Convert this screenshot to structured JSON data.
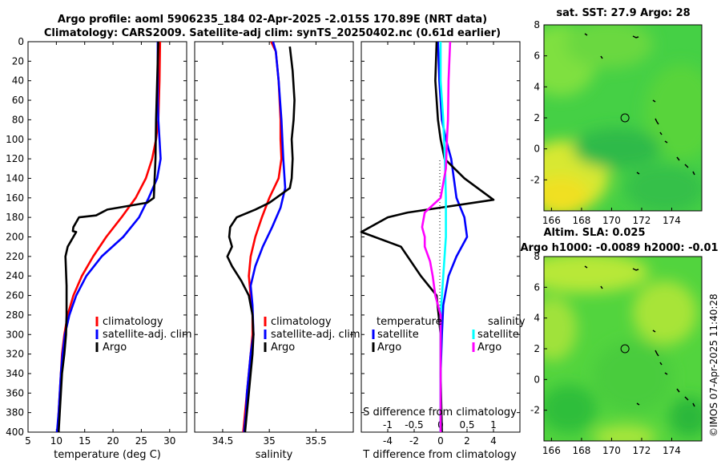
{
  "title": {
    "line1": "Argo profile: aoml 5906235_184 02-Apr-2025 -2.015S 170.89E (NRT data)",
    "line2": "Climatology: CARS2009. Satellite-adj clim: synTS_20250402.nc (0.61d earlier)"
  },
  "depth_ticks": [
    0,
    20,
    40,
    60,
    80,
    100,
    120,
    140,
    160,
    180,
    200,
    220,
    240,
    260,
    280,
    300,
    320,
    340,
    360,
    380,
    400
  ],
  "colors": {
    "climatology": "#ff0000",
    "satellite": "#0000ff",
    "argo": "#000000",
    "sat_salinity": "#00ffff",
    "argo_salinity": "#ff00ff"
  },
  "stamp": "©IMOS 07-Apr-2025 11:40:28",
  "chart_data": [
    {
      "type": "line",
      "name": "temperature",
      "xlabel": "temperature (deg C)",
      "ylabel": "depth",
      "xlim": [
        5,
        33
      ],
      "ylim": [
        0,
        400
      ],
      "xticks": [
        5,
        10,
        15,
        20,
        25,
        30
      ],
      "legend": [
        "climatology",
        "satellite-adj. clim",
        "Argo"
      ],
      "series": [
        {
          "name": "climatology",
          "color": "#ff0000",
          "points": [
            [
              28.3,
              0
            ],
            [
              28.2,
              40
            ],
            [
              28.0,
              80
            ],
            [
              27.6,
              100
            ],
            [
              26.9,
              120
            ],
            [
              25.8,
              140
            ],
            [
              24.0,
              160
            ],
            [
              21.5,
              180
            ],
            [
              18.8,
              200
            ],
            [
              16.5,
              220
            ],
            [
              14.5,
              240
            ],
            [
              13.0,
              260
            ],
            [
              12.0,
              280
            ],
            [
              11.4,
              300
            ],
            [
              11.0,
              320
            ],
            [
              10.8,
              340
            ],
            [
              10.6,
              360
            ],
            [
              10.4,
              380
            ],
            [
              10.2,
              400
            ]
          ]
        },
        {
          "name": "satellite-adj. clim",
          "color": "#0000ff",
          "points": [
            [
              27.9,
              0
            ],
            [
              27.9,
              60
            ],
            [
              28.0,
              80
            ],
            [
              28.2,
              100
            ],
            [
              28.4,
              120
            ],
            [
              27.8,
              140
            ],
            [
              26.3,
              160
            ],
            [
              24.6,
              180
            ],
            [
              21.8,
              200
            ],
            [
              18.0,
              220
            ],
            [
              15.3,
              240
            ],
            [
              13.5,
              260
            ],
            [
              12.3,
              280
            ],
            [
              11.5,
              300
            ],
            [
              11.1,
              320
            ],
            [
              10.8,
              340
            ],
            [
              10.6,
              360
            ],
            [
              10.4,
              380
            ],
            [
              10.1,
              400
            ]
          ]
        },
        {
          "name": "Argo",
          "color": "#000000",
          "points": [
            [
              28.0,
              0
            ],
            [
              27.8,
              40
            ],
            [
              27.6,
              80
            ],
            [
              27.5,
              120
            ],
            [
              27.2,
              160
            ],
            [
              26.0,
              165
            ],
            [
              19.0,
              172
            ],
            [
              17.0,
              178
            ],
            [
              14.0,
              180
            ],
            [
              13.0,
              190
            ],
            [
              12.9,
              194
            ],
            [
              13.5,
              195
            ],
            [
              12.0,
              210
            ],
            [
              11.6,
              220
            ],
            [
              11.8,
              250
            ],
            [
              11.8,
              280
            ],
            [
              11.7,
              300
            ],
            [
              11.4,
              320
            ],
            [
              11.0,
              340
            ],
            [
              10.8,
              360
            ],
            [
              10.6,
              380
            ],
            [
              10.4,
              400
            ]
          ]
        }
      ]
    },
    {
      "type": "line",
      "name": "salinity",
      "xlabel": "salinity",
      "ylabel": "depth",
      "xlim": [
        34.2,
        35.9
      ],
      "ylim": [
        0,
        400
      ],
      "xticks": [
        34.5,
        35,
        35.5
      ],
      "legend": [
        "climatology",
        "satellite-adj. clim",
        "Argo"
      ],
      "series": [
        {
          "name": "climatology",
          "color": "#ff0000",
          "points": [
            [
              35.02,
              0
            ],
            [
              35.07,
              10
            ],
            [
              35.1,
              40
            ],
            [
              35.12,
              80
            ],
            [
              35.12,
              100
            ],
            [
              35.13,
              120
            ],
            [
              35.1,
              140
            ],
            [
              35.0,
              160
            ],
            [
              34.92,
              180
            ],
            [
              34.85,
              200
            ],
            [
              34.8,
              220
            ],
            [
              34.78,
              240
            ],
            [
              34.8,
              260
            ],
            [
              34.82,
              280
            ],
            [
              34.82,
              300
            ],
            [
              34.8,
              320
            ],
            [
              34.78,
              340
            ],
            [
              34.76,
              360
            ],
            [
              34.74,
              380
            ],
            [
              34.72,
              400
            ]
          ]
        },
        {
          "name": "satellite-adj. clim",
          "color": "#0000ff",
          "points": [
            [
              35.04,
              0
            ],
            [
              35.07,
              10
            ],
            [
              35.1,
              40
            ],
            [
              35.13,
              80
            ],
            [
              35.15,
              120
            ],
            [
              35.17,
              150
            ],
            [
              35.12,
              170
            ],
            [
              35.03,
              190
            ],
            [
              34.93,
              210
            ],
            [
              34.85,
              230
            ],
            [
              34.8,
              250
            ],
            [
              34.82,
              270
            ],
            [
              34.83,
              300
            ],
            [
              34.8,
              320
            ],
            [
              34.78,
              340
            ],
            [
              34.76,
              360
            ],
            [
              34.75,
              380
            ],
            [
              34.73,
              400
            ]
          ]
        },
        {
          "name": "Argo",
          "color": "#000000",
          "points": [
            [
              35.22,
              5
            ],
            [
              35.25,
              30
            ],
            [
              35.27,
              60
            ],
            [
              35.26,
              80
            ],
            [
              35.24,
              100
            ],
            [
              35.25,
              120
            ],
            [
              35.24,
              140
            ],
            [
              35.22,
              150
            ],
            [
              35.0,
              165
            ],
            [
              34.85,
              172
            ],
            [
              34.65,
              180
            ],
            [
              34.58,
              190
            ],
            [
              34.57,
              200
            ],
            [
              34.6,
              210
            ],
            [
              34.55,
              220
            ],
            [
              34.6,
              230
            ],
            [
              34.7,
              245
            ],
            [
              34.78,
              260
            ],
            [
              34.82,
              280
            ],
            [
              34.83,
              300
            ],
            [
              34.82,
              320
            ],
            [
              34.8,
              340
            ],
            [
              34.78,
              360
            ],
            [
              34.76,
              380
            ],
            [
              34.74,
              400
            ]
          ]
        }
      ]
    },
    {
      "type": "line",
      "name": "difference",
      "xlabel": "T difference from climatology",
      "xlabel2": "S difference from climatology",
      "xlim": [
        -6,
        6
      ],
      "ylim": [
        0,
        400
      ],
      "xticks": [
        -4,
        -2,
        0,
        2,
        4
      ],
      "xlim2": [
        -1.5,
        1.5
      ],
      "xticks2": [
        -1,
        -0.5,
        0,
        0.5,
        1
      ],
      "xticklabels2": [
        "-1",
        "-0.5",
        "0",
        "0.5",
        "1"
      ],
      "legend_headers": [
        "temperature",
        "salinity"
      ],
      "legend": [
        "satellite",
        "Argo",
        "satellite",
        "Argo"
      ],
      "series": [
        {
          "name": "satellite (T)",
          "color": "#0000ff",
          "points": [
            [
              -0.2,
              0
            ],
            [
              -0.1,
              40
            ],
            [
              0.1,
              80
            ],
            [
              0.4,
              100
            ],
            [
              0.8,
              120
            ],
            [
              1.0,
              140
            ],
            [
              1.2,
              160
            ],
            [
              1.8,
              180
            ],
            [
              2.0,
              200
            ],
            [
              1.2,
              220
            ],
            [
              0.6,
              240
            ],
            [
              0.2,
              270
            ],
            [
              0.1,
              300
            ],
            [
              0,
              340
            ],
            [
              0,
              400
            ]
          ]
        },
        {
          "name": "Argo (T)",
          "color": "#000000",
          "points": [
            [
              -0.3,
              0
            ],
            [
              -0.4,
              40
            ],
            [
              -0.2,
              80
            ],
            [
              0,
              100
            ],
            [
              0.3,
              120
            ],
            [
              1.8,
              140
            ],
            [
              4.0,
              162
            ],
            [
              0,
              170
            ],
            [
              -2.5,
              175
            ],
            [
              -4,
              180
            ],
            [
              -6,
              195
            ],
            [
              -3,
              210
            ],
            [
              -1.5,
              240
            ],
            [
              -0.3,
              260
            ],
            [
              0,
              300
            ],
            [
              0,
              340
            ],
            [
              0.1,
              400
            ]
          ]
        },
        {
          "name": "satellite (S)",
          "color": "#00ffff",
          "points": [
            [
              0,
              0
            ],
            [
              0,
              40
            ],
            [
              0.05,
              80
            ],
            [
              0.08,
              120
            ],
            [
              0.1,
              160
            ],
            [
              0.1,
              200
            ],
            [
              0.05,
              240
            ],
            [
              0,
              280
            ],
            [
              0,
              400
            ]
          ]
        },
        {
          "name": "Argo (S)",
          "color": "#ff00ff",
          "points": [
            [
              0.18,
              0
            ],
            [
              0.15,
              40
            ],
            [
              0.14,
              80
            ],
            [
              0.12,
              100
            ],
            [
              0.1,
              130
            ],
            [
              0,
              160
            ],
            [
              -0.3,
              175
            ],
            [
              -0.35,
              190
            ],
            [
              -0.3,
              200
            ],
            [
              -0.3,
              210
            ],
            [
              -0.2,
              225
            ],
            [
              -0.15,
              240
            ],
            [
              -0.1,
              260
            ],
            [
              0,
              280
            ],
            [
              0,
              400
            ]
          ]
        }
      ]
    },
    {
      "type": "heatmap",
      "name": "sst-map",
      "title": "sat. SST: 27.9 Argo: 28",
      "xlim": [
        165.5,
        176
      ],
      "ylim": [
        -4,
        8
      ],
      "xticks": [
        166,
        168,
        170,
        172,
        174
      ],
      "yticks": [
        -2,
        0,
        2,
        4,
        6,
        8
      ],
      "marker": {
        "lon": 170.89,
        "lat": 2.0
      }
    },
    {
      "type": "heatmap",
      "name": "sla-map",
      "title": "Altim. SLA: 0.025",
      "subtitle": "Argo h1000: -0.0089 h2000: -0.01",
      "xlim": [
        165.5,
        176
      ],
      "ylim": [
        -4,
        8
      ],
      "xticks": [
        166,
        168,
        170,
        172,
        174
      ],
      "yticks": [
        -2,
        0,
        2,
        4,
        6,
        8
      ],
      "marker": {
        "lon": 170.89,
        "lat": 2.0
      }
    }
  ]
}
